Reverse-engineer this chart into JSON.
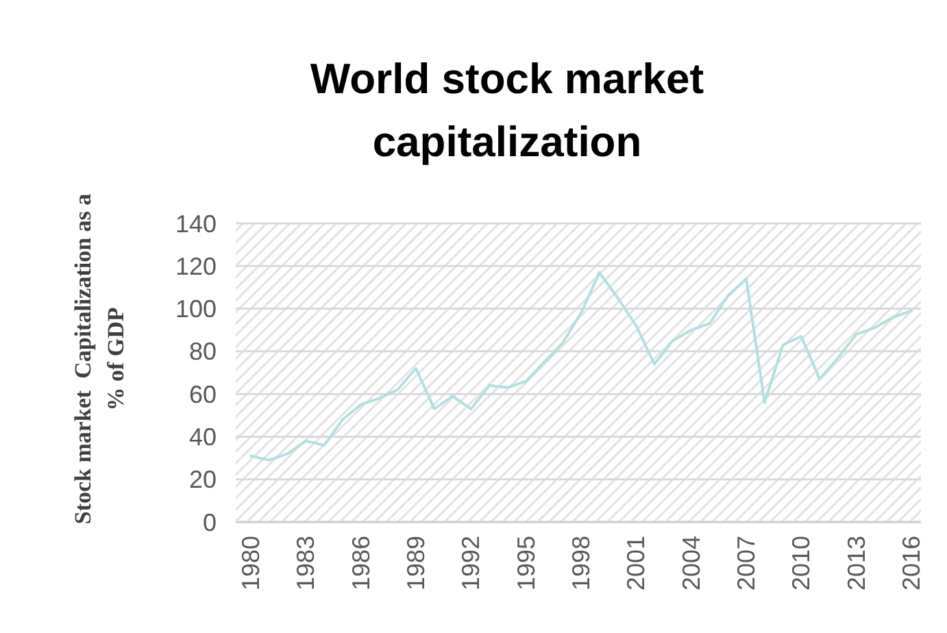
{
  "chart_data": {
    "type": "line",
    "title": "World stock market capitalization",
    "ylabel": "Stock market  Capitalization as a % of GDP",
    "categories": [
      "1980",
      null,
      null,
      "1983",
      null,
      null,
      "1986",
      null,
      null,
      "1989",
      null,
      null,
      "1992",
      null,
      null,
      "1995",
      null,
      null,
      "1998",
      null,
      null,
      "2001",
      null,
      null,
      "2004",
      null,
      null,
      "2007",
      null,
      null,
      "2010",
      null,
      null,
      "2013",
      null,
      null,
      "2016"
    ],
    "series": [
      {
        "color": "#b4dfe0",
        "values": [
          31,
          29,
          32,
          38,
          36,
          48,
          55,
          58,
          62,
          72,
          53,
          59,
          53,
          64,
          63,
          66,
          75,
          84,
          98,
          117,
          105,
          92,
          74,
          85,
          90,
          93,
          106,
          114,
          56,
          83,
          87,
          67,
          77,
          88,
          91,
          96,
          99
        ]
      }
    ],
    "ylim": [
      0,
      140
    ],
    "yticks": [
      0,
      20,
      40,
      60,
      80,
      100,
      120,
      140
    ],
    "grid": "y",
    "marker": "none",
    "line_style": "solid"
  }
}
